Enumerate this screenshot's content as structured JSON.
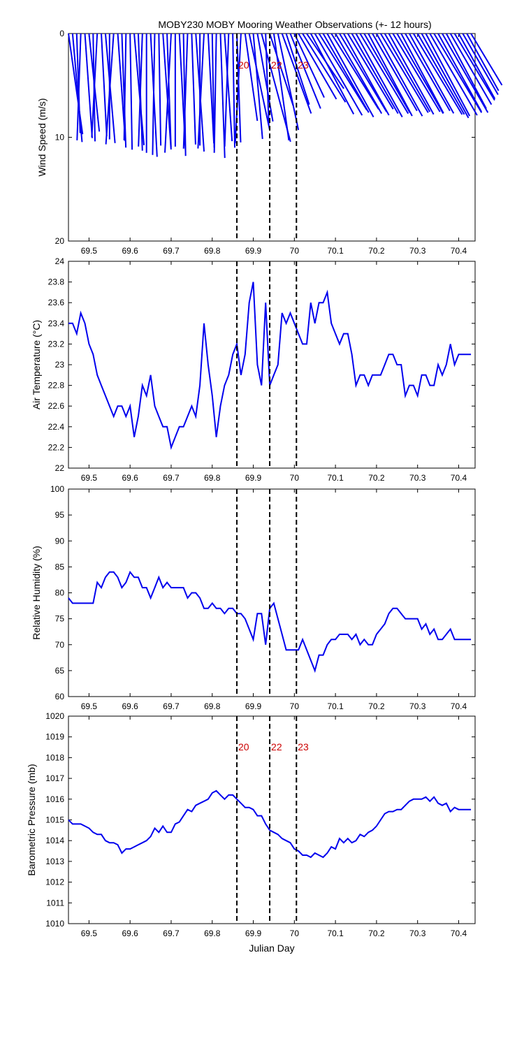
{
  "title": "MOBY230 MOBY Mooring Weather Observations (+- 12 hours)",
  "colors": {
    "series": "#0000ee",
    "marker_label": "#cc0000",
    "axes": "#000000"
  },
  "chart_data": [
    {
      "type": "line",
      "panel": "wind",
      "note_style": "wind stick plot",
      "title": "MOBY230 MOBY Mooring Weather Observations (+- 12 hours)",
      "xlabel": "",
      "ylabel": "Wind Speed (m/s)",
      "xlim": [
        69.45,
        70.44
      ],
      "ylim": [
        0,
        20
      ],
      "y_reversed": true,
      "xticks": [
        "69.5",
        "69.6",
        "69.7",
        "69.8",
        "69.9",
        "70",
        "70.1",
        "70.2",
        "70.3",
        "70.4"
      ],
      "yticks": [
        "0",
        "10",
        "20"
      ],
      "markers": [
        {
          "x": 69.86,
          "label": "20"
        },
        {
          "x": 69.94,
          "label": "22"
        },
        {
          "x": 70.005,
          "label": "23"
        }
      ],
      "x": [
        69.45,
        69.46,
        69.47,
        69.48,
        69.49,
        69.5,
        69.51,
        69.52,
        69.53,
        69.54,
        69.55,
        69.56,
        69.57,
        69.58,
        69.59,
        69.6,
        69.61,
        69.62,
        69.63,
        69.64,
        69.65,
        69.66,
        69.67,
        69.68,
        69.69,
        69.7,
        69.71,
        69.72,
        69.73,
        69.74,
        69.75,
        69.76,
        69.77,
        69.78,
        69.79,
        69.8,
        69.81,
        69.82,
        69.83,
        69.84,
        69.85,
        69.86,
        69.87,
        69.88,
        69.89,
        69.9,
        69.91,
        69.92,
        69.93,
        69.94,
        69.95,
        69.96,
        69.97,
        69.98,
        69.99,
        70.0,
        70.01,
        70.02,
        70.03,
        70.04,
        70.05,
        70.06,
        70.07,
        70.08,
        70.09,
        70.1,
        70.11,
        70.12,
        70.13,
        70.14,
        70.15,
        70.16,
        70.17,
        70.18,
        70.19,
        70.2,
        70.21,
        70.22,
        70.23,
        70.24,
        70.25,
        70.26,
        70.27,
        70.28,
        70.29,
        70.3,
        70.31,
        70.32,
        70.33,
        70.34,
        70.35,
        70.36,
        70.37,
        70.38,
        70.39,
        70.4,
        70.41,
        70.42,
        70.43
      ],
      "values": [
        9.8,
        10.5,
        9.6,
        10.3,
        10.1,
        9.5,
        10.4,
        10.0,
        9.9,
        10.6,
        10.2,
        10.7,
        10.4,
        11.0,
        10.3,
        11.2,
        10.8,
        11.3,
        10.9,
        11.5,
        11.9,
        11.7,
        10.8,
        11.2,
        11.0,
        11.5,
        10.9,
        11.3,
        11.8,
        11.1,
        10.7,
        11.4,
        10.8,
        11.1,
        10.6,
        11.0,
        11.5,
        12.0,
        10.4,
        10.9,
        11.0,
        10.5,
        10.6,
        8.5,
        9.5,
        10.2,
        8.6,
        10.8,
        8.8,
        7.3,
        10.4,
        9.5,
        8.2,
        7.2,
        7.8,
        6.8,
        7.3,
        7.8,
        6.4,
        8.8,
        9.1,
        8.7,
        8.8,
        9.2,
        8.6,
        8.9,
        8.8,
        9.0,
        8.5,
        8.9,
        9.2,
        9.0,
        8.8,
        9.0,
        8.6,
        9.1,
        8.9,
        8.7,
        8.9,
        8.8,
        8.9,
        8.7,
        8.6,
        8.8,
        9.1,
        9.0,
        9.3,
        9.0,
        9.1,
        8.9,
        8.6,
        8.8,
        8.2,
        7.9,
        7.5,
        7.2,
        6.8,
        6.3,
        5.8
      ],
      "directions": [
        172,
        175,
        178,
        182,
        176,
        174,
        179,
        183,
        177,
        175,
        180,
        184,
        176,
        178,
        181,
        179,
        175,
        178,
        182,
        180,
        177,
        181,
        179,
        176,
        178,
        183,
        180,
        177,
        179,
        182,
        178,
        176,
        180,
        183,
        177,
        179,
        181,
        178,
        176,
        182,
        179,
        178,
        183,
        172,
        168,
        175,
        170,
        165,
        178,
        162,
        172,
        168,
        160,
        162,
        158,
        155,
        150,
        148,
        146,
        152,
        150,
        148,
        150,
        151,
        148,
        150,
        149,
        151,
        149,
        150,
        151,
        149,
        150,
        152,
        150,
        151,
        149,
        150,
        151,
        149,
        150,
        152,
        150,
        151,
        149,
        150,
        151,
        152,
        150,
        149,
        151,
        150,
        152,
        150,
        149,
        151,
        150,
        151,
        149
      ]
    },
    {
      "type": "line",
      "panel": "air_temperature",
      "xlabel": "",
      "ylabel": "Air Temperature (°C)",
      "xlim": [
        69.45,
        70.44
      ],
      "ylim": [
        22,
        24
      ],
      "xticks": [
        "69.5",
        "69.6",
        "69.7",
        "69.8",
        "69.9",
        "70",
        "70.1",
        "70.2",
        "70.3",
        "70.4"
      ],
      "yticks": [
        "22",
        "22.2",
        "22.4",
        "22.6",
        "22.8",
        "23",
        "23.2",
        "23.4",
        "23.6",
        "23.8",
        "24"
      ],
      "markers": [
        {
          "x": 69.86,
          "label": ""
        },
        {
          "x": 69.94,
          "label": ""
        },
        {
          "x": 70.005,
          "label": ""
        }
      ],
      "x": [
        69.45,
        69.46,
        69.47,
        69.48,
        69.49,
        69.5,
        69.51,
        69.52,
        69.53,
        69.54,
        69.55,
        69.56,
        69.57,
        69.58,
        69.59,
        69.6,
        69.61,
        69.62,
        69.63,
        69.64,
        69.65,
        69.66,
        69.67,
        69.68,
        69.69,
        69.7,
        69.71,
        69.72,
        69.73,
        69.74,
        69.75,
        69.76,
        69.77,
        69.78,
        69.79,
        69.8,
        69.81,
        69.82,
        69.83,
        69.84,
        69.85,
        69.86,
        69.87,
        69.88,
        69.89,
        69.9,
        69.91,
        69.92,
        69.93,
        69.94,
        69.95,
        69.96,
        69.97,
        69.98,
        69.99,
        70.0,
        70.01,
        70.02,
        70.03,
        70.04,
        70.05,
        70.06,
        70.07,
        70.08,
        70.09,
        70.1,
        70.11,
        70.12,
        70.13,
        70.14,
        70.15,
        70.16,
        70.17,
        70.18,
        70.19,
        70.2,
        70.21,
        70.22,
        70.23,
        70.24,
        70.25,
        70.26,
        70.27,
        70.28,
        70.29,
        70.3,
        70.31,
        70.32,
        70.33,
        70.34,
        70.35,
        70.36,
        70.37,
        70.38,
        70.39,
        70.4,
        70.41,
        70.42,
        70.43
      ],
      "values": [
        23.4,
        23.4,
        23.3,
        23.5,
        23.4,
        23.2,
        23.1,
        22.9,
        22.8,
        22.7,
        22.6,
        22.5,
        22.6,
        22.6,
        22.5,
        22.6,
        22.3,
        22.5,
        22.8,
        22.7,
        22.9,
        22.6,
        22.5,
        22.4,
        22.4,
        22.2,
        22.3,
        22.4,
        22.4,
        22.5,
        22.6,
        22.5,
        22.8,
        23.4,
        23.0,
        22.7,
        22.3,
        22.6,
        22.8,
        22.9,
        23.1,
        23.2,
        22.9,
        23.1,
        23.6,
        23.8,
        23.0,
        22.8,
        23.6,
        22.8,
        22.9,
        23.0,
        23.5,
        23.4,
        23.5,
        23.4,
        23.3,
        23.2,
        23.2,
        23.6,
        23.4,
        23.6,
        23.6,
        23.7,
        23.4,
        23.3,
        23.2,
        23.3,
        23.3,
        23.1,
        22.8,
        22.9,
        22.9,
        22.8,
        22.9,
        22.9,
        22.9,
        23.0,
        23.1,
        23.1,
        23.0,
        23.0,
        22.7,
        22.8,
        22.8,
        22.7,
        22.9,
        22.9,
        22.8,
        22.8,
        23.0,
        22.9,
        23.0,
        23.2,
        23.0,
        23.1,
        23.1,
        23.1,
        23.1
      ]
    },
    {
      "type": "line",
      "panel": "relative_humidity",
      "xlabel": "",
      "ylabel": "Relative Humidity (%)",
      "xlim": [
        69.45,
        70.44
      ],
      "ylim": [
        60,
        100
      ],
      "xticks": [
        "69.5",
        "69.6",
        "69.7",
        "69.8",
        "69.9",
        "70",
        "70.1",
        "70.2",
        "70.3",
        "70.4"
      ],
      "yticks": [
        "60",
        "65",
        "70",
        "75",
        "80",
        "85",
        "90",
        "95",
        "100"
      ],
      "markers": [
        {
          "x": 69.86,
          "label": ""
        },
        {
          "x": 69.94,
          "label": ""
        },
        {
          "x": 70.005,
          "label": ""
        }
      ],
      "x": [
        69.45,
        69.46,
        69.47,
        69.48,
        69.49,
        69.5,
        69.51,
        69.52,
        69.53,
        69.54,
        69.55,
        69.56,
        69.57,
        69.58,
        69.59,
        69.6,
        69.61,
        69.62,
        69.63,
        69.64,
        69.65,
        69.66,
        69.67,
        69.68,
        69.69,
        69.7,
        69.71,
        69.72,
        69.73,
        69.74,
        69.75,
        69.76,
        69.77,
        69.78,
        69.79,
        69.8,
        69.81,
        69.82,
        69.83,
        69.84,
        69.85,
        69.86,
        69.87,
        69.88,
        69.89,
        69.9,
        69.91,
        69.92,
        69.93,
        69.94,
        69.95,
        69.96,
        69.97,
        69.98,
        69.99,
        70.0,
        70.01,
        70.02,
        70.03,
        70.04,
        70.05,
        70.06,
        70.07,
        70.08,
        70.09,
        70.1,
        70.11,
        70.12,
        70.13,
        70.14,
        70.15,
        70.16,
        70.17,
        70.18,
        70.19,
        70.2,
        70.21,
        70.22,
        70.23,
        70.24,
        70.25,
        70.26,
        70.27,
        70.28,
        70.29,
        70.3,
        70.31,
        70.32,
        70.33,
        70.34,
        70.35,
        70.36,
        70.37,
        70.38,
        70.39,
        70.4,
        70.41,
        70.42,
        70.43
      ],
      "values": [
        79,
        78,
        78,
        78,
        78,
        78,
        78,
        82,
        81,
        83,
        84,
        84,
        83,
        81,
        82,
        84,
        83,
        83,
        81,
        81,
        79,
        81,
        83,
        81,
        82,
        81,
        81,
        81,
        81,
        79,
        80,
        80,
        79,
        77,
        77,
        78,
        77,
        77,
        76,
        77,
        77,
        76,
        76,
        75,
        73,
        71,
        76,
        76,
        70,
        77,
        78,
        75,
        72,
        69,
        69,
        69,
        69,
        71,
        69,
        67,
        65,
        68,
        68,
        70,
        71,
        71,
        72,
        72,
        72,
        71,
        72,
        70,
        71,
        70,
        70,
        72,
        73,
        74,
        76,
        77,
        77,
        76,
        75,
        75,
        75,
        75,
        73,
        74,
        72,
        73,
        71,
        71,
        72,
        73,
        71,
        71,
        71,
        71,
        71
      ]
    },
    {
      "type": "line",
      "panel": "barometric_pressure",
      "xlabel": "Julian Day",
      "ylabel": "Barometric Pressure (mb)",
      "xlim": [
        69.45,
        70.44
      ],
      "ylim": [
        1010,
        1020
      ],
      "xticks": [
        "69.5",
        "69.6",
        "69.7",
        "69.8",
        "69.9",
        "70",
        "70.1",
        "70.2",
        "70.3",
        "70.4"
      ],
      "yticks": [
        "1010",
        "1011",
        "1012",
        "1013",
        "1014",
        "1015",
        "1016",
        "1017",
        "1018",
        "1019",
        "1020"
      ],
      "markers": [
        {
          "x": 69.86,
          "label": "20"
        },
        {
          "x": 69.94,
          "label": "22"
        },
        {
          "x": 70.005,
          "label": "23"
        }
      ],
      "x": [
        69.45,
        69.46,
        69.47,
        69.48,
        69.49,
        69.5,
        69.51,
        69.52,
        69.53,
        69.54,
        69.55,
        69.56,
        69.57,
        69.58,
        69.59,
        69.6,
        69.61,
        69.62,
        69.63,
        69.64,
        69.65,
        69.66,
        69.67,
        69.68,
        69.69,
        69.7,
        69.71,
        69.72,
        69.73,
        69.74,
        69.75,
        69.76,
        69.77,
        69.78,
        69.79,
        69.8,
        69.81,
        69.82,
        69.83,
        69.84,
        69.85,
        69.86,
        69.87,
        69.88,
        69.89,
        69.9,
        69.91,
        69.92,
        69.93,
        69.94,
        69.95,
        69.96,
        69.97,
        69.98,
        69.99,
        70.0,
        70.01,
        70.02,
        70.03,
        70.04,
        70.05,
        70.06,
        70.07,
        70.08,
        70.09,
        70.1,
        70.11,
        70.12,
        70.13,
        70.14,
        70.15,
        70.16,
        70.17,
        70.18,
        70.19,
        70.2,
        70.21,
        70.22,
        70.23,
        70.24,
        70.25,
        70.26,
        70.27,
        70.28,
        70.29,
        70.3,
        70.31,
        70.32,
        70.33,
        70.34,
        70.35,
        70.36,
        70.37,
        70.38,
        70.39,
        70.4,
        70.41,
        70.42,
        70.43
      ],
      "values": [
        1015.0,
        1014.8,
        1014.8,
        1014.8,
        1014.7,
        1014.6,
        1014.4,
        1014.3,
        1014.3,
        1014.0,
        1013.9,
        1013.9,
        1013.8,
        1013.4,
        1013.6,
        1013.6,
        1013.7,
        1013.8,
        1013.9,
        1014.0,
        1014.2,
        1014.6,
        1014.4,
        1014.7,
        1014.4,
        1014.4,
        1014.8,
        1014.9,
        1015.2,
        1015.5,
        1015.4,
        1015.7,
        1015.8,
        1015.9,
        1016.0,
        1016.3,
        1016.4,
        1016.2,
        1016.0,
        1016.2,
        1016.2,
        1016.0,
        1015.8,
        1015.6,
        1015.6,
        1015.5,
        1015.2,
        1015.2,
        1014.8,
        1014.5,
        1014.4,
        1014.3,
        1014.1,
        1014.0,
        1013.9,
        1013.6,
        1013.5,
        1013.3,
        1013.3,
        1013.2,
        1013.4,
        1013.3,
        1013.2,
        1013.4,
        1013.7,
        1013.6,
        1014.1,
        1013.9,
        1014.1,
        1013.9,
        1014.0,
        1014.3,
        1014.2,
        1014.4,
        1014.5,
        1014.7,
        1015.0,
        1015.3,
        1015.4,
        1015.4,
        1015.5,
        1015.5,
        1015.7,
        1015.9,
        1016.0,
        1016.0,
        1016.0,
        1016.1,
        1015.9,
        1016.1,
        1015.8,
        1015.7,
        1015.8,
        1015.4,
        1015.6,
        1015.5,
        1015.5,
        1015.5,
        1015.5
      ]
    }
  ]
}
